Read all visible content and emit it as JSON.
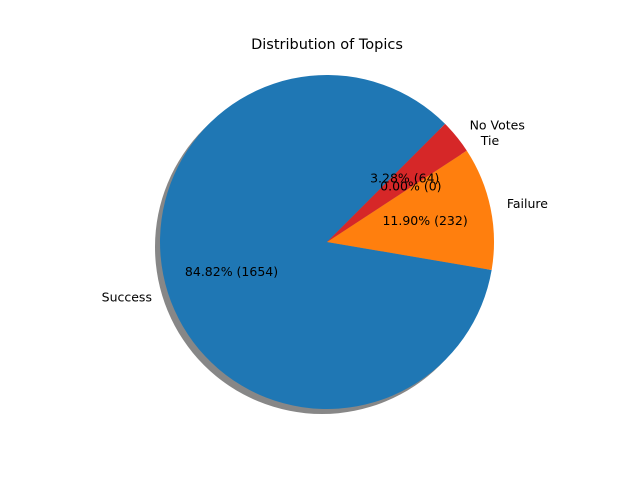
{
  "chart_data": {
    "type": "pie",
    "title": "Distribution of Topics",
    "slices": [
      {
        "label": "Success",
        "value": 1654,
        "percent_label": "84.82% (1654)",
        "color": "#1f77b4"
      },
      {
        "label": "Failure",
        "value": 232,
        "percent_label": "11.90% (232)",
        "color": "#ff7f0e"
      },
      {
        "label": "Tie",
        "value": 0,
        "percent_label": "0.00% (0)",
        "color": "#2ca02c"
      },
      {
        "label": "No Votes",
        "value": 64,
        "percent_label": "3.28% (64)",
        "color": "#d62728"
      }
    ],
    "start_angle_deg": 45,
    "shadow": true,
    "legend": "none"
  }
}
